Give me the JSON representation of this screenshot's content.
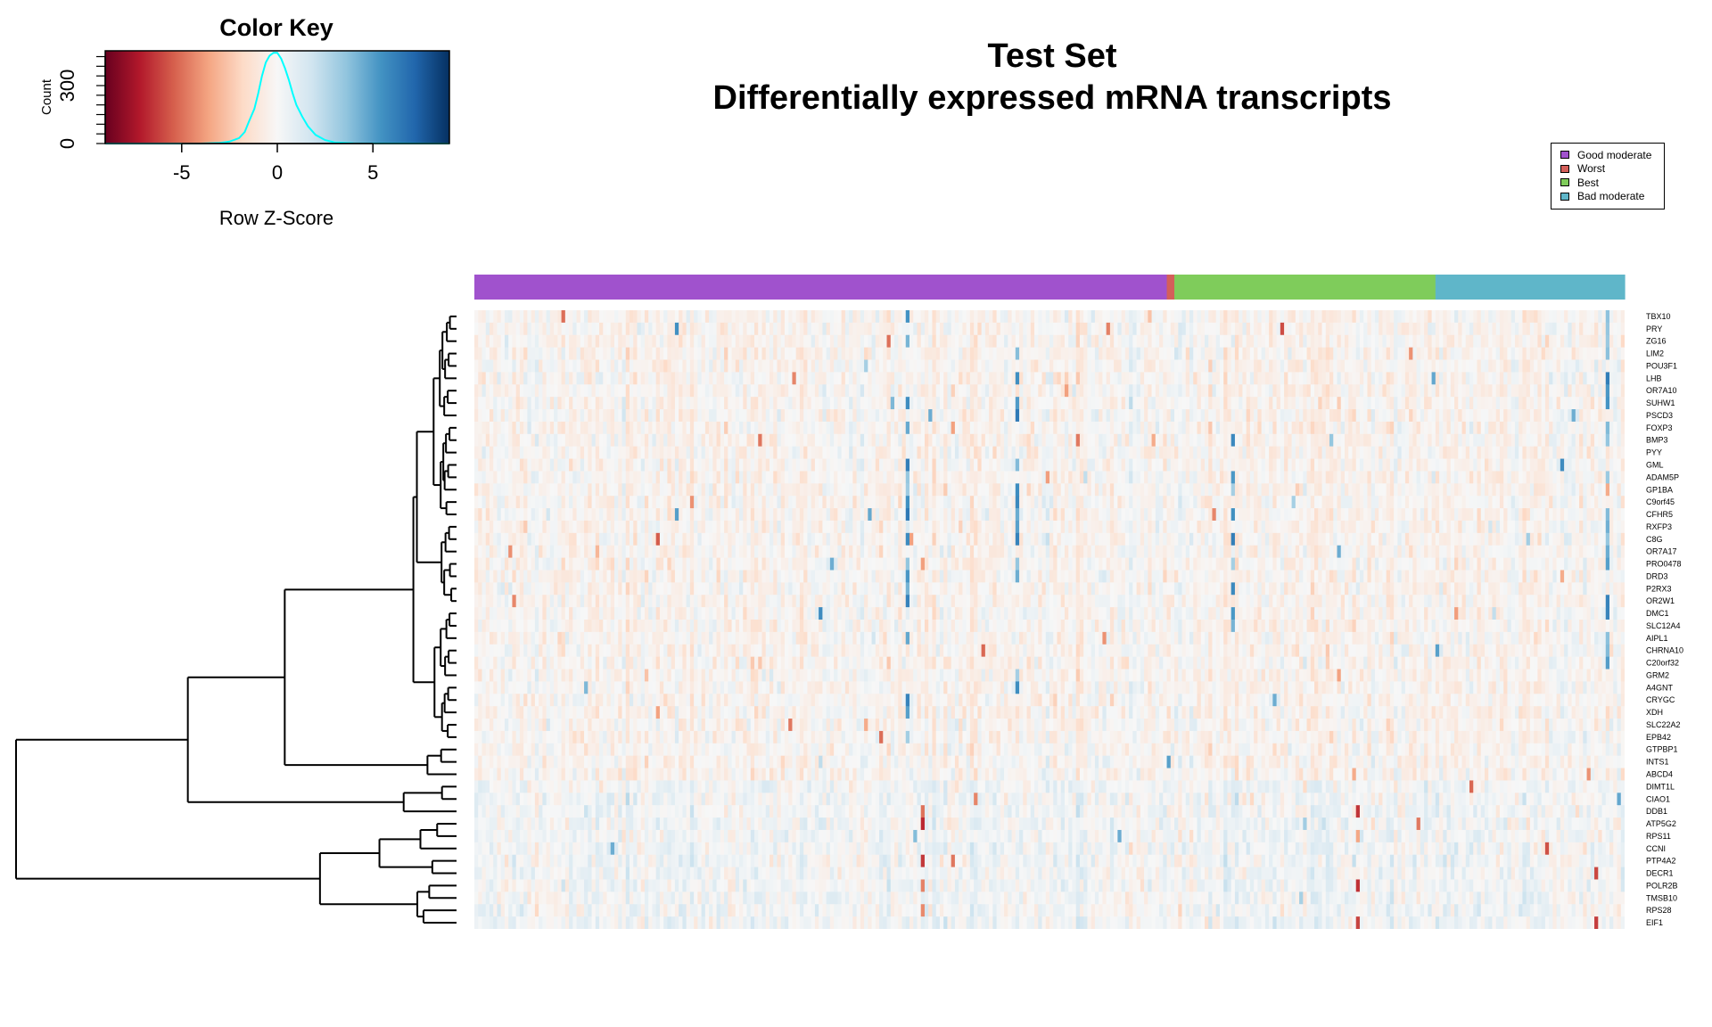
{
  "title_line1": "Test Set",
  "title_line2": "Differentially expressed mRNA transcripts",
  "chart_data": [
    {
      "type": "histogram",
      "title": "Color Key",
      "xlabel": "Row Z-Score",
      "ylabel": "Count",
      "xlim": [
        -9,
        9
      ],
      "ylim": [
        0,
        480
      ],
      "xticks": [
        -5,
        0,
        5
      ],
      "yticks": [
        0,
        300
      ],
      "color_scale": [
        "#67001f",
        "#b2182b",
        "#d6604d",
        "#f4a582",
        "#fddbc7",
        "#f7f7f7",
        "#d1e5f0",
        "#92c5de",
        "#4393c3",
        "#2166ac",
        "#053061"
      ],
      "density_color": "#00ffff",
      "density_curve": [
        [
          -9,
          0
        ],
        [
          -4,
          0
        ],
        [
          -3,
          3
        ],
        [
          -2.5,
          10
        ],
        [
          -2,
          28
        ],
        [
          -1.7,
          60
        ],
        [
          -1.5,
          110
        ],
        [
          -1.2,
          180
        ],
        [
          -1,
          260
        ],
        [
          -0.8,
          350
        ],
        [
          -0.6,
          420
        ],
        [
          -0.4,
          455
        ],
        [
          -0.2,
          470
        ],
        [
          0,
          470
        ],
        [
          0.2,
          440
        ],
        [
          0.4,
          390
        ],
        [
          0.6,
          330
        ],
        [
          0.8,
          260
        ],
        [
          1,
          200
        ],
        [
          1.3,
          140
        ],
        [
          1.6,
          90
        ],
        [
          2,
          45
        ],
        [
          2.5,
          18
        ],
        [
          3,
          6
        ],
        [
          4,
          1
        ],
        [
          9,
          0
        ]
      ]
    },
    {
      "type": "heatmap",
      "rows": [
        "TBX10",
        "PRY",
        "ZG16",
        "LIM2",
        "POU3F1",
        "LHB",
        "OR7A10",
        "SUHW1",
        "PSCD3",
        "FOXP3",
        "BMP3",
        "PYY",
        "GML",
        "ADAM5P",
        "GP1BA",
        "C9orf45",
        "CFHR5",
        "RXFP3",
        "C8G",
        "OR7A17",
        "PRO0478",
        "DRD3",
        "P2RX3",
        "OR2W1",
        "DMC1",
        "SLC12A4",
        "AIPL1",
        "CHRNA10",
        "C20orf32",
        "GRM2",
        "A4GNT",
        "CRYGC",
        "XDH",
        "SLC22A2",
        "EPB42",
        "GTPBP1",
        "INTS1",
        "ABCD4",
        "DIMT1L",
        "CIAO1",
        "DDB1",
        "ATP5G2",
        "RPS11",
        "CCNI",
        "PTP4A2",
        "DECR1",
        "POLR2B",
        "TMSB10",
        "RPS28",
        "EIF1"
      ],
      "value_range": [
        -9,
        9
      ],
      "groups": [
        {
          "name": "Good moderate",
          "color": "#a052cd",
          "n": 183
        },
        {
          "name": "Worst",
          "color": "#d45f5a",
          "n": 2
        },
        {
          "name": "Best",
          "color": "#7fcc5b",
          "n": 69
        },
        {
          "name": "Bad moderate",
          "color": "#5fb6c9",
          "n": 50
        }
      ],
      "legend": [
        "Good moderate",
        "Worst",
        "Best",
        "Bad moderate"
      ],
      "legend_placement": "top-right",
      "dendrogram_side": "left"
    }
  ]
}
